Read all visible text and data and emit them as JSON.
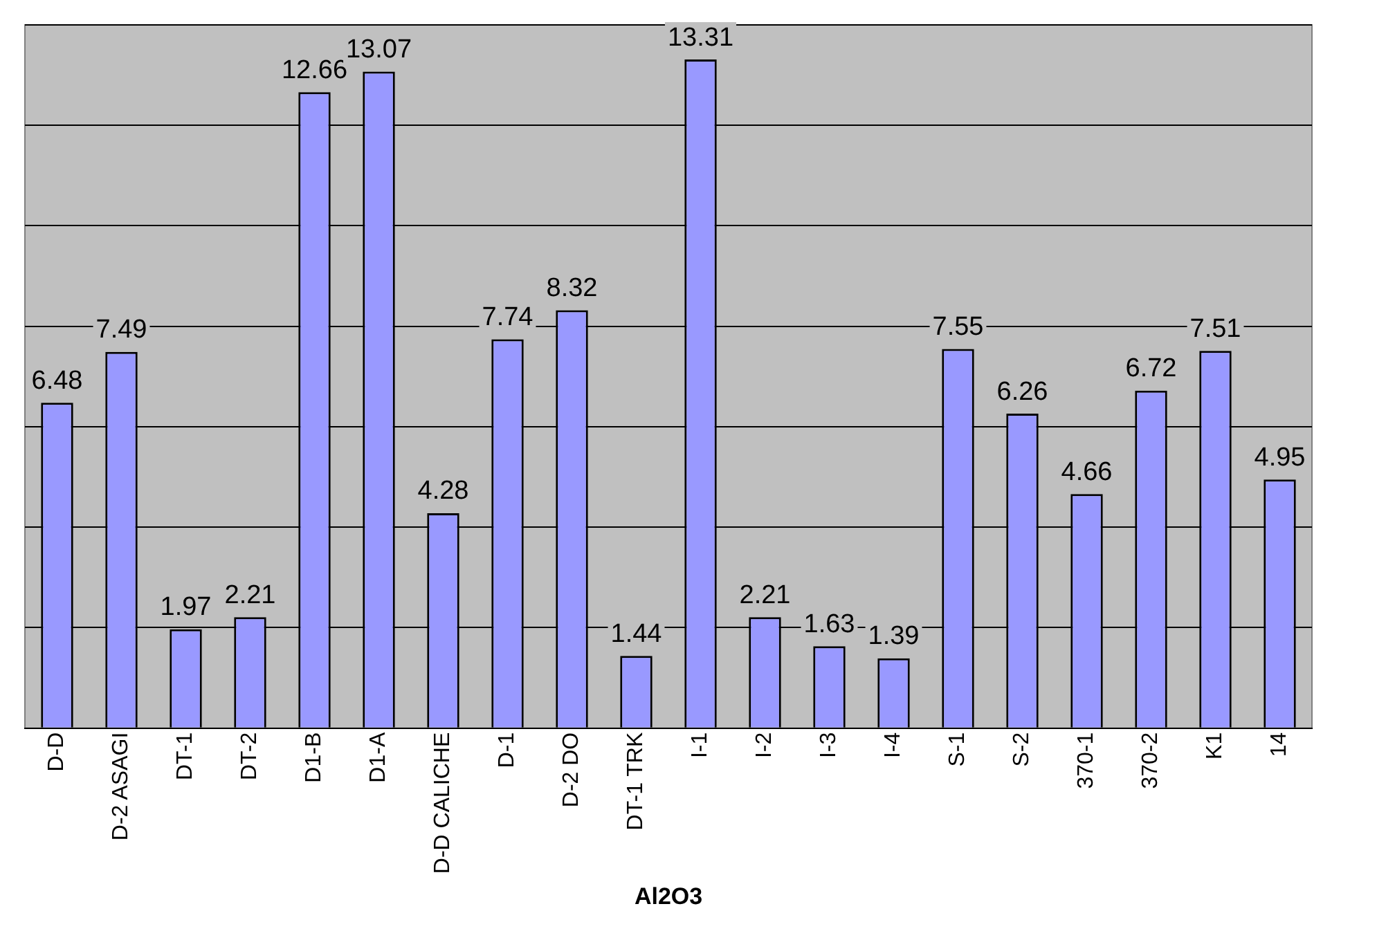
{
  "chart_data": {
    "type": "bar",
    "xlabel": "Al2O3",
    "categories": [
      "D-D",
      "D-2 ASAGI",
      "DT-1",
      "DT-2",
      "D1-B",
      "D1-A",
      "D-D CALICHE",
      "D-1",
      "D-2 DO",
      "DT-1 TRK",
      "I-1",
      "I-2",
      "I-3",
      "I-4",
      "S-1",
      "S-2",
      "370-1",
      "370-2",
      "K1",
      "14"
    ],
    "values": [
      6.48,
      7.49,
      1.97,
      2.21,
      12.66,
      13.07,
      4.28,
      7.74,
      8.32,
      1.44,
      13.31,
      2.21,
      1.63,
      1.39,
      7.55,
      6.26,
      4.66,
      6.72,
      7.51,
      4.95
    ],
    "color": "#9999ff",
    "ylim": [
      0,
      14
    ],
    "tick_labels": "x",
    "grid": "y",
    "legend": false,
    "data_labels": true
  }
}
